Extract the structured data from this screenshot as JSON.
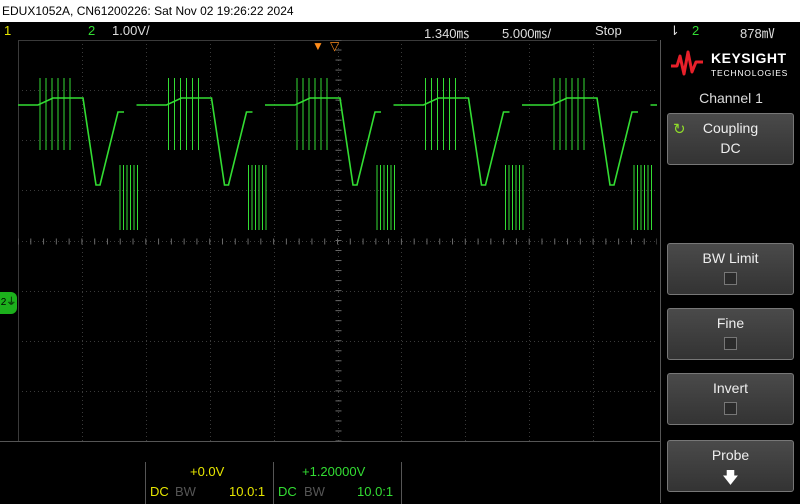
{
  "title_bar": {
    "text": "EDUX1052A, CN61200226: Sat Nov 02 19:26:22 2024"
  },
  "status_bar": {
    "ch1_label": "1",
    "ch2_label": "2",
    "ch2_scale": "1.00V/",
    "time_delay": "1.340㎳",
    "time_scale": "5.000㎳/",
    "run_state": "Stop",
    "trigger_icon": "trigger-edge-icon",
    "trigger_source": "2",
    "trigger_level": "878㎷"
  },
  "waveform": {
    "channel": "2",
    "color": "#33dd33",
    "marker_label": "2"
  },
  "right_panel": {
    "brand": "KEYSIGHT",
    "brand_sub": "TECHNOLOGIES",
    "menu_title": "Channel 1",
    "coupling_label": "Coupling",
    "coupling_value": "DC",
    "bw_limit_label": "BW Limit",
    "fine_label": "Fine",
    "invert_label": "Invert",
    "probe_label": "Probe"
  },
  "bottom_bar": {
    "ch1_offset": "+0.0V",
    "ch1_coupling": "DC",
    "ch1_bw": "BW",
    "ch1_probe": "10.0:1",
    "ch2_offset": "+1.20000V",
    "ch2_coupling": "DC",
    "ch2_bw": "BW",
    "ch2_probe": "10.0:1"
  }
}
